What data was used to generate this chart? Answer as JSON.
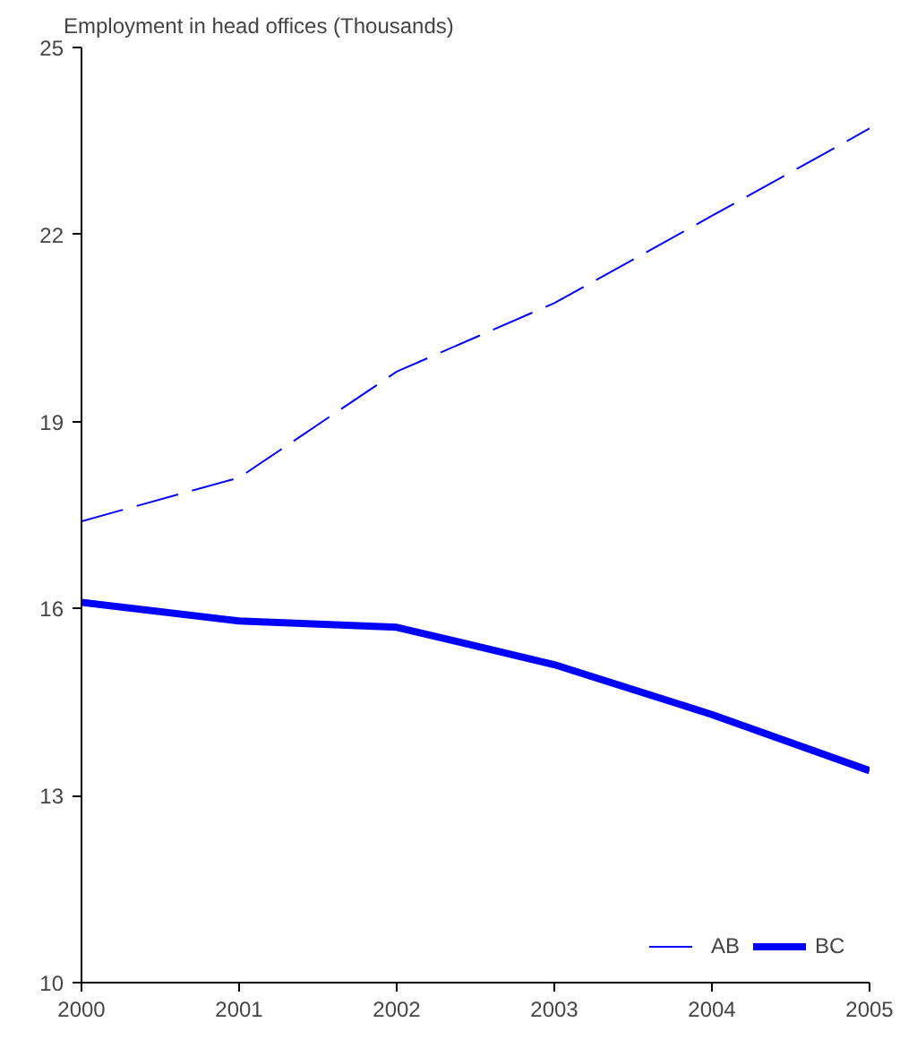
{
  "chart_data": {
    "type": "line",
    "title": "Employment in head offices (Thousands)",
    "x": [
      2000,
      2001,
      2002,
      2003,
      2004,
      2005
    ],
    "series": [
      {
        "name": "AB",
        "color": "#0000ff",
        "line_style": "dashed",
        "values": [
          17.4,
          18.1,
          19.8,
          20.9,
          22.3,
          23.7
        ]
      },
      {
        "name": "BC",
        "color": "#0000ff",
        "line_style": "solid",
        "values": [
          16.1,
          15.8,
          15.7,
          15.1,
          14.3,
          13.4
        ]
      }
    ],
    "xlim": [
      2000,
      2005
    ],
    "xticks": [
      2000,
      2001,
      2002,
      2003,
      2004,
      2005
    ],
    "ylim": [
      10,
      25
    ],
    "yticks": [
      10,
      13,
      16,
      19,
      22,
      25
    ],
    "grid": false,
    "legend": "bottom right"
  }
}
